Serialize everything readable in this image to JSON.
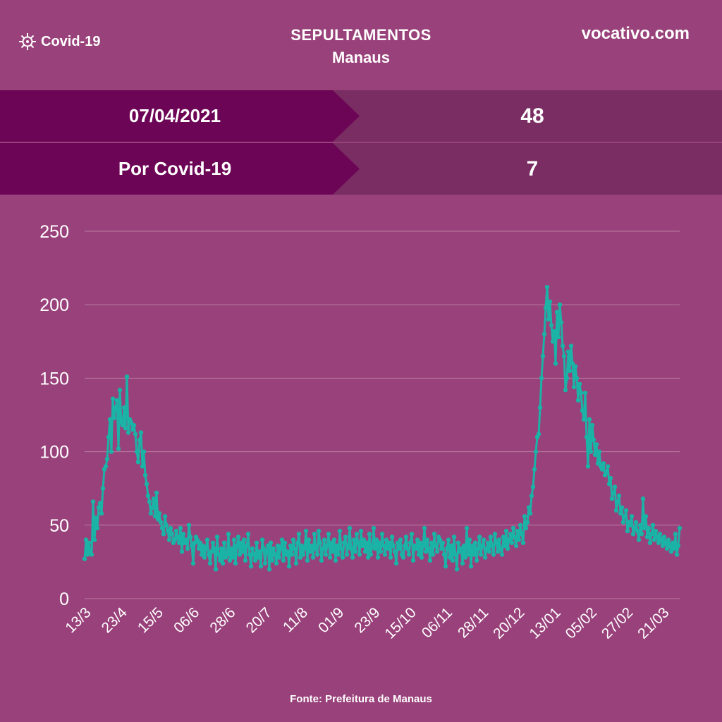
{
  "header": {
    "brand_label": "Covid-19",
    "brand_icon": "virus-icon",
    "title_line1": "SEPULTAMENTOS",
    "title_line2": "Manaus",
    "site": "vocativo.com"
  },
  "stats": [
    {
      "label": "07/04/2021",
      "value": "48"
    },
    {
      "label": "Por Covid-19",
      "value": "7"
    }
  ],
  "source": "Fonte:  Prefeitura de Manaus",
  "colors": {
    "background": "#99417a",
    "band_dark": "#6d0556",
    "band_light": "#7a2d62",
    "line": "#1ab3a6"
  },
  "chart_data": {
    "type": "line",
    "ylim": [
      0,
      250
    ],
    "yticks": [
      0,
      50,
      100,
      150,
      200,
      250
    ],
    "xtick_labels": [
      "13/3",
      "23/4",
      "15/5",
      "06/6",
      "28/6",
      "20/7",
      "11/8",
      "01/9",
      "23/9",
      "15/10",
      "06/11",
      "28/11",
      "20/12",
      "13/01",
      "05/02",
      "27/02",
      "21/03"
    ],
    "grid": true,
    "series": [
      {
        "values": [
          27,
          40,
          30,
          38,
          32,
          30,
          66,
          40,
          55,
          48,
          62,
          65,
          58,
          75,
          88,
          90,
          95,
          110,
          122,
          100,
          136,
          123,
          130,
          135,
          102,
          142,
          120,
          118,
          130,
          116,
          151,
          113,
          122,
          120,
          115,
          118,
          112,
          100,
          93,
          108,
          113,
          90,
          100,
          84,
          78,
          70,
          66,
          58,
          62,
          68,
          56,
          72,
          54,
          58,
          52,
          48,
          44,
          56,
          50,
          46,
          40,
          48,
          44,
          38,
          40,
          46,
          42,
          38,
          48,
          32,
          44,
          38,
          40,
          34,
          50,
          42,
          36,
          24,
          38,
          42,
          40,
          34,
          38,
          30,
          36,
          28,
          34,
          40,
          30,
          24,
          32,
          38,
          34,
          20,
          42,
          30,
          26,
          34,
          24,
          38,
          28,
          30,
          44,
          26,
          34,
          28,
          40,
          24,
          36,
          42,
          30,
          38,
          32,
          40,
          26,
          36,
          44,
          30,
          22,
          34,
          30,
          26,
          38,
          28,
          32,
          22,
          40,
          34,
          24,
          32,
          36,
          20,
          38,
          26,
          34,
          30,
          24,
          36,
          28,
          34,
          40,
          26,
          38,
          30,
          32,
          22,
          36,
          30,
          40,
          34,
          24,
          38,
          44,
          28,
          36,
          30,
          34,
          46,
          26,
          40,
          32,
          36,
          28,
          44,
          34,
          30,
          46,
          38,
          26,
          34,
          40,
          30,
          36,
          44,
          28,
          38,
          32,
          40,
          26,
          36,
          30,
          46,
          34,
          28,
          38,
          42,
          30,
          36,
          48,
          34,
          28,
          40,
          32,
          44,
          38,
          30,
          46,
          36,
          40,
          32,
          38,
          28,
          44,
          30,
          36,
          48,
          34,
          40,
          28,
          38,
          32,
          44,
          36,
          30,
          40,
          34,
          38,
          28,
          42,
          36,
          32,
          24,
          38,
          34,
          40,
          30,
          28,
          36,
          42,
          34,
          30,
          38,
          44,
          26,
          36,
          34,
          40,
          30,
          38,
          28,
          36,
          48,
          32,
          40,
          34,
          26,
          38,
          30,
          44,
          36,
          32,
          42,
          40,
          34,
          38,
          30,
          22,
          34,
          40,
          28,
          36,
          26,
          42,
          30,
          20,
          38,
          32,
          34,
          24,
          36,
          28,
          48,
          30,
          40,
          22,
          36,
          30,
          38,
          26,
          34,
          42,
          30,
          36,
          40,
          28,
          34,
          38,
          32,
          42,
          36,
          30,
          44,
          38,
          32,
          40,
          34,
          30,
          42,
          36,
          46,
          34,
          40,
          44,
          38,
          48,
          42,
          36,
          46,
          40,
          50,
          44,
          38,
          56,
          48,
          52,
          62,
          58,
          70,
          76,
          88,
          100,
          110,
          112,
          130,
          150,
          165,
          180,
          198,
          212,
          190,
          202,
          186,
          175,
          182,
          160,
          195,
          178,
          200,
          188,
          172,
          165,
          142,
          150,
          168,
          155,
          172,
          160,
          144,
          158,
          150,
          135,
          146,
          140,
          128,
          122,
          140,
          110,
          90,
          122,
          100,
          118,
          108,
          98,
          105,
          92,
          100,
          90,
          88,
          92,
          84,
          86,
          90,
          78,
          82,
          68,
          72,
          76,
          60,
          66,
          70,
          58,
          62,
          52,
          56,
          60,
          46,
          52,
          50,
          56,
          44,
          48,
          52,
          46,
          40,
          50,
          44,
          68,
          48,
          56,
          42,
          48,
          38,
          44,
          50,
          40,
          46,
          42,
          38,
          44,
          40,
          36,
          42,
          38,
          34,
          40,
          36,
          32,
          38,
          34,
          44,
          30,
          36,
          48
        ]
      }
    ]
  }
}
